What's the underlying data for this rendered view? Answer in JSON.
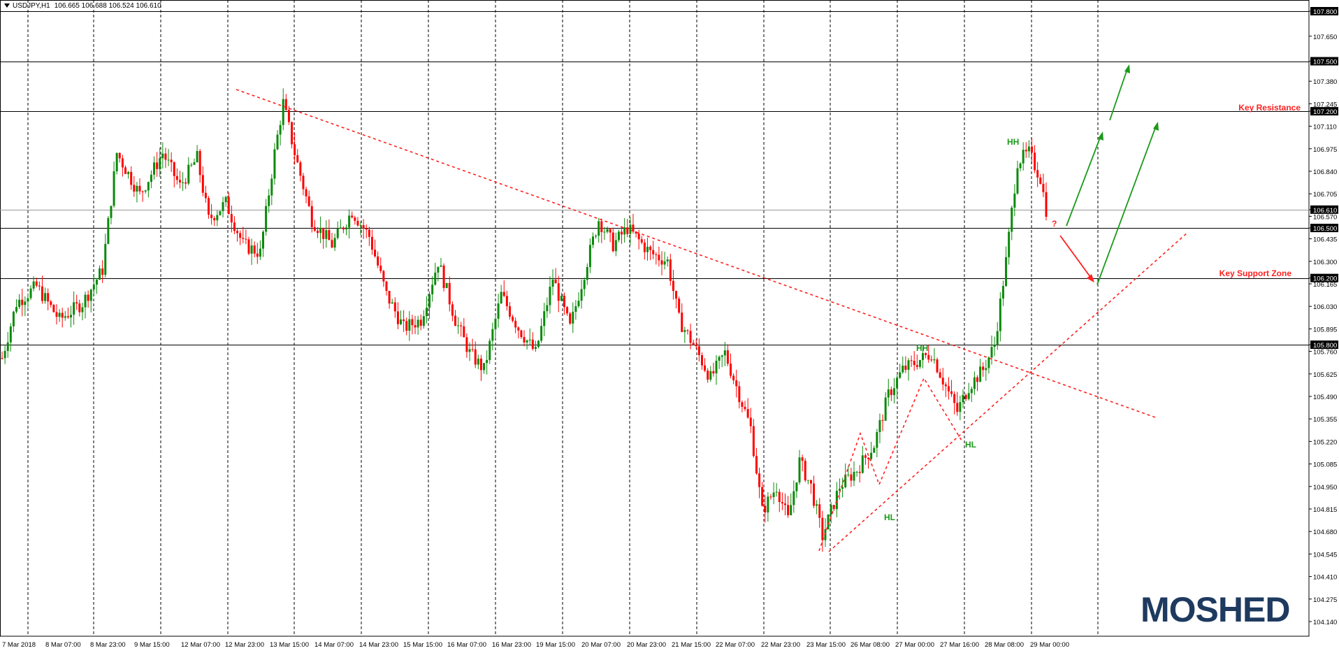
{
  "header": {
    "symbol": "USDJPY,H1",
    "ohlc": "106.665 106.688 106.524 106.610"
  },
  "brand": {
    "logo_text": "MOSHED",
    "logo_color": "#1e3a5f"
  },
  "annotations": {
    "key_resistance": "Key Resistance",
    "key_support_zone": "Key Support Zone",
    "question": "?",
    "hh1": "HH",
    "hh2": "HH",
    "hl1": "HL",
    "hl2": "HL"
  },
  "colors": {
    "bull": "#0a8a0a",
    "bear": "#ff0000",
    "annotation_red": "#ff2020",
    "annotation_green": "#1a9a1a",
    "grid": "#000000",
    "price_tag_bg": "#000000"
  },
  "chart_data": {
    "type": "candlestick",
    "symbol": "USDJPY",
    "timeframe": "H1",
    "ylim": [
      104.14,
      107.8
    ],
    "y_ticks": [
      107.8,
      107.65,
      107.5,
      107.38,
      107.245,
      107.2,
      107.11,
      106.975,
      106.84,
      106.705,
      106.61,
      106.57,
      106.5,
      106.435,
      106.3,
      106.2,
      106.165,
      106.03,
      105.895,
      105.8,
      105.76,
      105.625,
      105.49,
      105.355,
      105.22,
      105.085,
      104.95,
      104.815,
      104.68,
      104.545,
      104.41,
      104.275,
      104.14
    ],
    "highlighted_levels": [
      107.8,
      107.5,
      107.2,
      106.61,
      106.5,
      106.2,
      105.8
    ],
    "x_ticks": [
      "7 Mar 2018",
      "8 Mar 07:00",
      "8 Mar 23:00",
      "9 Mar 15:00",
      "12 Mar 07:00",
      "12 Mar 23:00",
      "13 Mar 15:00",
      "14 Mar 07:00",
      "14 Mar 23:00",
      "15 Mar 15:00",
      "16 Mar 07:00",
      "16 Mar 23:00",
      "19 Mar 15:00",
      "20 Mar 07:00",
      "20 Mar 23:00",
      "21 Mar 15:00",
      "22 Mar 07:00",
      "22 Mar 23:00",
      "23 Mar 15:00",
      "26 Mar 08:00",
      "27 Mar 00:00",
      "27 Mar 16:00",
      "28 Mar 08:00",
      "29 Mar 00:00"
    ],
    "price_path": [
      [
        0,
        105.72
      ],
      [
        5,
        106.05
      ],
      [
        12,
        106.15
      ],
      [
        20,
        105.95
      ],
      [
        28,
        106.05
      ],
      [
        35,
        106.25
      ],
      [
        40,
        106.95
      ],
      [
        48,
        106.7
      ],
      [
        56,
        106.95
      ],
      [
        62,
        106.75
      ],
      [
        68,
        106.92
      ],
      [
        72,
        106.55
      ],
      [
        78,
        106.65
      ],
      [
        84,
        106.4
      ],
      [
        90,
        106.35
      ],
      [
        95,
        106.95
      ],
      [
        98,
        107.25
      ],
      [
        102,
        106.95
      ],
      [
        108,
        106.55
      ],
      [
        115,
        106.4
      ],
      [
        122,
        106.6
      ],
      [
        128,
        106.45
      ],
      [
        134,
        106.1
      ],
      [
        140,
        105.9
      ],
      [
        146,
        105.95
      ],
      [
        152,
        106.3
      ],
      [
        158,
        105.95
      ],
      [
        163,
        105.75
      ],
      [
        168,
        105.65
      ],
      [
        174,
        106.1
      ],
      [
        180,
        105.9
      ],
      [
        186,
        105.75
      ],
      [
        192,
        106.2
      ],
      [
        198,
        105.9
      ],
      [
        204,
        106.3
      ],
      [
        208,
        106.55
      ],
      [
        213,
        106.4
      ],
      [
        218,
        106.5
      ],
      [
        226,
        106.35
      ],
      [
        232,
        106.3
      ],
      [
        236,
        105.95
      ],
      [
        241,
        105.8
      ],
      [
        247,
        105.6
      ],
      [
        252,
        105.75
      ],
      [
        257,
        105.5
      ],
      [
        261,
        105.3
      ],
      [
        265,
        104.8
      ],
      [
        270,
        104.95
      ],
      [
        274,
        104.75
      ],
      [
        278,
        105.1
      ],
      [
        282,
        104.95
      ],
      [
        286,
        104.65
      ],
      [
        292,
        104.95
      ],
      [
        298,
        105.05
      ],
      [
        304,
        105.2
      ],
      [
        309,
        105.5
      ],
      [
        314,
        105.65
      ],
      [
        319,
        105.7
      ],
      [
        324,
        105.75
      ],
      [
        329,
        105.55
      ],
      [
        333,
        105.4
      ],
      [
        337,
        105.55
      ],
      [
        342,
        105.65
      ],
      [
        346,
        105.8
      ],
      [
        350,
        106.3
      ],
      [
        354,
        106.9
      ],
      [
        358,
        106.95
      ],
      [
        362,
        106.8
      ],
      [
        364,
        106.61
      ]
    ],
    "trendlines": [
      {
        "name": "descending-resistance",
        "from": [
          "12 Mar 23:00",
          107.33
        ],
        "to": [
          "29 Mar 00:00",
          105.43
        ]
      },
      {
        "name": "ascending-support",
        "from": [
          "23 Mar 15:00",
          104.63
        ],
        "to": [
          "29 Mar 00:00",
          106.48
        ]
      }
    ]
  }
}
